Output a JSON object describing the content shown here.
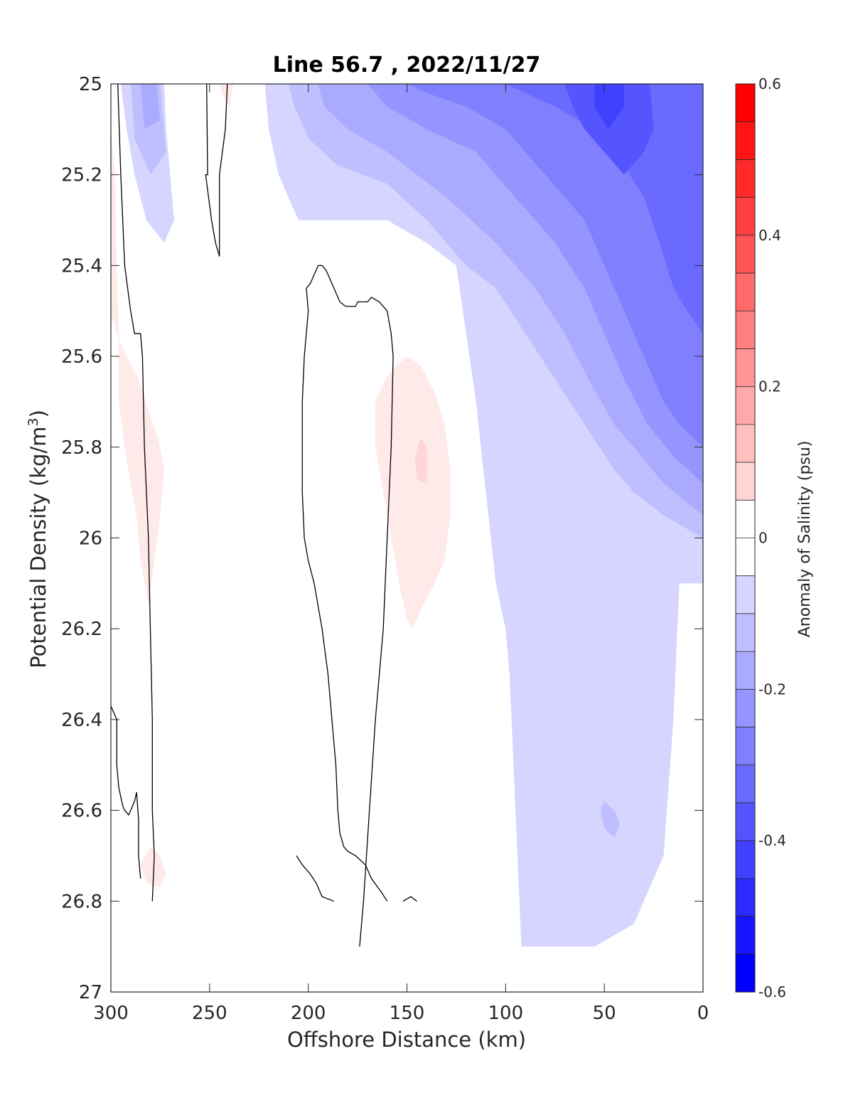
{
  "chart_data": {
    "type": "contour",
    "title": "Line 56.7 , 2022/11/27",
    "xlabel": "Offshore Distance (km)",
    "ylabel_main": "Potential Density (kg/m",
    "ylabel_sup": "3",
    "ylabel_close": ")",
    "xlim": [
      300,
      0
    ],
    "ylim": [
      25,
      27
    ],
    "x_reversed": true,
    "y_reversed": true,
    "xticks": [
      300,
      250,
      200,
      150,
      100,
      50,
      0
    ],
    "xtick_labels": [
      "300",
      "250",
      "200",
      "150",
      "100",
      "50",
      "0"
    ],
    "yticks": [
      25,
      25.2,
      25.4,
      25.6,
      25.8,
      26,
      26.2,
      26.4,
      26.6,
      26.8,
      27
    ],
    "ytick_labels": [
      "25",
      "25.2",
      "25.4",
      "25.6",
      "25.8",
      "26",
      "26.2",
      "26.4",
      "26.6",
      "26.8",
      "27"
    ],
    "colorbar": {
      "label": "Anomaly of Salinity (psu)",
      "range": [
        -0.6,
        0.6
      ],
      "step": 0.05,
      "ticks": [
        -0.6,
        -0.4,
        -0.2,
        0,
        0.2,
        0.4,
        0.6
      ],
      "tick_labels": [
        "-0.6",
        "-0.4",
        "-0.2",
        "0",
        "0.2",
        "0.4",
        "0.6"
      ],
      "neg_color": "#0000ff",
      "pos_color": "#ff0000"
    },
    "zero_contour_lines": [
      [
        [
          296.5,
          25
        ],
        [
          295,
          25.2
        ],
        [
          293,
          25.4
        ],
        [
          290,
          25.5
        ],
        [
          288,
          25.55
        ],
        [
          285,
          25.55
        ],
        [
          284,
          25.6
        ],
        [
          283,
          25.8
        ],
        [
          281,
          26
        ],
        [
          280,
          26.2
        ],
        [
          279,
          26.4
        ],
        [
          279,
          26.6
        ],
        [
          278,
          26.7
        ],
        [
          279,
          26.8
        ]
      ],
      [
        [
          251.5,
          25
        ],
        [
          251,
          25.2
        ],
        [
          252,
          25.2
        ],
        [
          249,
          25.3
        ],
        [
          247,
          25.35
        ],
        [
          245,
          25.38
        ],
        [
          245,
          25.2
        ],
        [
          242,
          25.1
        ],
        [
          241,
          25
        ]
      ],
      [
        [
          200,
          25.5
        ],
        [
          201,
          25.45
        ],
        [
          199,
          25.44
        ],
        [
          197,
          25.42
        ],
        [
          195,
          25.4
        ],
        [
          193,
          25.4
        ],
        [
          191,
          25.41
        ],
        [
          187,
          25.45
        ],
        [
          184,
          25.48
        ],
        [
          181,
          25.49
        ],
        [
          176,
          25.49
        ],
        [
          175,
          25.48
        ],
        [
          170,
          25.48
        ],
        [
          168,
          25.47
        ],
        [
          164,
          25.48
        ],
        [
          160,
          25.5
        ],
        [
          158,
          25.55
        ],
        [
          157,
          25.6
        ],
        [
          158,
          25.8
        ],
        [
          160,
          26
        ],
        [
          162,
          26.2
        ],
        [
          166,
          26.4
        ],
        [
          169,
          26.6
        ],
        [
          172,
          26.8
        ],
        [
          174,
          26.9
        ]
      ],
      [
        [
          200,
          25.5
        ],
        [
          202,
          25.6
        ],
        [
          203,
          25.7
        ],
        [
          203,
          25.9
        ],
        [
          202,
          26.0
        ],
        [
          200,
          26.05
        ],
        [
          197,
          26.1
        ],
        [
          195,
          26.15
        ],
        [
          193,
          26.2
        ],
        [
          190,
          26.3
        ],
        [
          186,
          26.5
        ],
        [
          185,
          26.6
        ],
        [
          184,
          26.65
        ],
        [
          182,
          26.68
        ],
        [
          180,
          26.69
        ],
        [
          176,
          26.7
        ],
        [
          171,
          26.72
        ],
        [
          168,
          26.75
        ],
        [
          163,
          26.78
        ],
        [
          160,
          26.8
        ]
      ],
      [
        [
          300,
          26.37
        ],
        [
          297,
          26.4
        ],
        [
          297,
          26.5
        ],
        [
          296,
          26.55
        ],
        [
          294,
          26.59
        ],
        [
          293,
          26.6
        ],
        [
          291,
          26.61
        ],
        [
          290,
          26.6
        ],
        [
          288,
          26.58
        ],
        [
          287,
          26.56
        ],
        [
          286,
          26.62
        ],
        [
          286,
          26.7
        ],
        [
          285,
          26.75
        ]
      ],
      [
        [
          206,
          26.7
        ],
        [
          203,
          26.72
        ],
        [
          199,
          26.74
        ],
        [
          196,
          26.76
        ],
        [
          193,
          26.79
        ],
        [
          187,
          26.8
        ]
      ],
      [
        [
          152,
          26.8
        ],
        [
          148,
          26.79
        ],
        [
          145,
          26.8
        ]
      ]
    ],
    "colorbar_level_values": [
      -0.6,
      -0.55,
      -0.5,
      -0.45,
      -0.4,
      -0.35,
      -0.3,
      -0.25,
      -0.2,
      -0.15,
      -0.1,
      -0.05,
      0,
      0.05,
      0.1,
      0.15,
      0.2,
      0.25,
      0.3,
      0.35,
      0.4,
      0.45,
      0.5,
      0.55,
      0.6
    ],
    "anomaly_regions": [
      {
        "level": -0.1,
        "points": [
          [
            230,
            25
          ],
          [
            0,
            25
          ],
          [
            0,
            26.1
          ],
          [
            12,
            26.1
          ],
          [
            15,
            26.4
          ],
          [
            20,
            26.7
          ],
          [
            35,
            26.85
          ],
          [
            55,
            26.9
          ],
          [
            92,
            26.9
          ],
          [
            95,
            26.6
          ],
          [
            98,
            26.3
          ],
          [
            100,
            26.2
          ],
          [
            105,
            26.1
          ],
          [
            110,
            25.9
          ],
          [
            115,
            25.7
          ],
          [
            120,
            25.55
          ],
          [
            125,
            25.4
          ],
          [
            140,
            25.35
          ],
          [
            160,
            25.3
          ],
          [
            190,
            25.3
          ],
          [
            205,
            25.3
          ],
          [
            215,
            25.2
          ],
          [
            220,
            25.1
          ],
          [
            222,
            25
          ]
        ]
      },
      {
        "level": -0.1,
        "points": [
          [
            295,
            25
          ],
          [
            273,
            25
          ],
          [
            272,
            25.1
          ],
          [
            270,
            25.2
          ],
          [
            268,
            25.3
          ],
          [
            273,
            25.35
          ],
          [
            282,
            25.3
          ],
          [
            288,
            25.2
          ],
          [
            292,
            25.1
          ]
        ]
      },
      {
        "level": -0.15,
        "points": [
          [
            210,
            25
          ],
          [
            0,
            25
          ],
          [
            0,
            26
          ],
          [
            20,
            25.95
          ],
          [
            35,
            25.9
          ],
          [
            45,
            25.85
          ],
          [
            60,
            25.75
          ],
          [
            75,
            25.65
          ],
          [
            90,
            25.55
          ],
          [
            105,
            25.45
          ],
          [
            120,
            25.4
          ],
          [
            140,
            25.3
          ],
          [
            160,
            25.22
          ],
          [
            185,
            25.18
          ],
          [
            200,
            25.12
          ],
          [
            207,
            25.05
          ]
        ]
      },
      {
        "level": -0.15,
        "points": [
          [
            290,
            25
          ],
          [
            275,
            25
          ],
          [
            272,
            25.15
          ],
          [
            280,
            25.2
          ],
          [
            288,
            25.12
          ]
        ]
      },
      {
        "level": -0.2,
        "points": [
          [
            195,
            25
          ],
          [
            0,
            25
          ],
          [
            0,
            25.95
          ],
          [
            20,
            25.88
          ],
          [
            35,
            25.8
          ],
          [
            45,
            25.75
          ],
          [
            58,
            25.65
          ],
          [
            70,
            25.55
          ],
          [
            85,
            25.45
          ],
          [
            105,
            25.35
          ],
          [
            130,
            25.25
          ],
          [
            160,
            25.15
          ],
          [
            180,
            25.1
          ],
          [
            192,
            25.05
          ]
        ]
      },
      {
        "level": -0.2,
        "points": [
          [
            285,
            25
          ],
          [
            277,
            25
          ],
          [
            275,
            25.08
          ],
          [
            283,
            25.1
          ]
        ]
      },
      {
        "level": -0.25,
        "points": [
          [
            170,
            25
          ],
          [
            0,
            25
          ],
          [
            0,
            25.88
          ],
          [
            15,
            25.82
          ],
          [
            28,
            25.75
          ],
          [
            40,
            25.65
          ],
          [
            50,
            25.55
          ],
          [
            60,
            25.45
          ],
          [
            75,
            25.35
          ],
          [
            95,
            25.25
          ],
          [
            115,
            25.15
          ],
          [
            140,
            25.1
          ],
          [
            160,
            25.05
          ]
        ]
      },
      {
        "level": -0.3,
        "points": [
          [
            150,
            25
          ],
          [
            0,
            25
          ],
          [
            0,
            25.8
          ],
          [
            12,
            25.75
          ],
          [
            20,
            25.7
          ],
          [
            30,
            25.6
          ],
          [
            40,
            25.5
          ],
          [
            50,
            25.4
          ],
          [
            60,
            25.3
          ],
          [
            80,
            25.2
          ],
          [
            100,
            25.1
          ],
          [
            120,
            25.05
          ],
          [
            140,
            25.02
          ]
        ]
      },
      {
        "level": -0.35,
        "points": [
          [
            100,
            25
          ],
          [
            0,
            25
          ],
          [
            0,
            25.55
          ],
          [
            8,
            25.5
          ],
          [
            15,
            25.45
          ],
          [
            22,
            25.35
          ],
          [
            30,
            25.25
          ],
          [
            40,
            25.18
          ],
          [
            55,
            25.1
          ],
          [
            75,
            25.05
          ],
          [
            90,
            25.02
          ]
        ]
      },
      {
        "level": -0.4,
        "points": [
          [
            70,
            25
          ],
          [
            27,
            25
          ],
          [
            25,
            25.1
          ],
          [
            30,
            25.15
          ],
          [
            40,
            25.2
          ],
          [
            50,
            25.15
          ],
          [
            60,
            25.1
          ],
          [
            66,
            25.05
          ]
        ]
      },
      {
        "level": -0.45,
        "points": [
          [
            55,
            25
          ],
          [
            40,
            25
          ],
          [
            40,
            25.05
          ],
          [
            48,
            25.1
          ],
          [
            55,
            25.05
          ]
        ]
      },
      {
        "level": -0.15,
        "points": [
          [
            50,
            26.58
          ],
          [
            45,
            26.6
          ],
          [
            42,
            26.63
          ],
          [
            45,
            26.66
          ],
          [
            50,
            26.64
          ],
          [
            52,
            26.6
          ]
        ]
      },
      {
        "level": 0.05,
        "points": [
          [
            300,
            25.1
          ],
          [
            298,
            25.2
          ],
          [
            297,
            25.4
          ],
          [
            296,
            25.55
          ],
          [
            296,
            25.7
          ],
          [
            293,
            25.8
          ],
          [
            290,
            25.88
          ],
          [
            287,
            25.95
          ],
          [
            285,
            26.05
          ],
          [
            283,
            26.1
          ],
          [
            281,
            26.15
          ],
          [
            278,
            26.05
          ],
          [
            275,
            25.95
          ],
          [
            273,
            25.85
          ],
          [
            276,
            25.78
          ],
          [
            281,
            25.72
          ],
          [
            286,
            25.65
          ],
          [
            292,
            25.6
          ],
          [
            297,
            25.55
          ],
          [
            300,
            25.5
          ]
        ]
      },
      {
        "level": 0.05,
        "points": [
          [
            300,
            25.3
          ],
          [
            299,
            25.35
          ],
          [
            299,
            25.5
          ],
          [
            300,
            25.55
          ]
        ]
      },
      {
        "level": 0.05,
        "points": [
          [
            150,
            25.6
          ],
          [
            143,
            25.62
          ],
          [
            136,
            25.68
          ],
          [
            131,
            25.75
          ],
          [
            128,
            25.85
          ],
          [
            128,
            25.95
          ],
          [
            131,
            26.05
          ],
          [
            136,
            26.1
          ],
          [
            142,
            26.15
          ],
          [
            147,
            26.2
          ],
          [
            150,
            26.18
          ],
          [
            154,
            26.1
          ],
          [
            158,
            26.0
          ],
          [
            162,
            25.9
          ],
          [
            166,
            25.8
          ],
          [
            166,
            25.7
          ],
          [
            161,
            25.65
          ],
          [
            155,
            25.62
          ]
        ]
      },
      {
        "level": 0.1,
        "points": [
          [
            143,
            25.78
          ],
          [
            140,
            25.8
          ],
          [
            140,
            25.88
          ],
          [
            145,
            25.87
          ],
          [
            146,
            25.82
          ]
        ]
      },
      {
        "level": 0.05,
        "points": [
          [
            280,
            26.68
          ],
          [
            275,
            26.7
          ],
          [
            272,
            26.74
          ],
          [
            275,
            26.77
          ],
          [
            282,
            26.76
          ],
          [
            285,
            26.72
          ]
        ]
      },
      {
        "level": 0.05,
        "points": [
          [
            245,
            25
          ],
          [
            238,
            25
          ],
          [
            240,
            25.05
          ],
          [
            243,
            25.03
          ]
        ]
      }
    ]
  }
}
